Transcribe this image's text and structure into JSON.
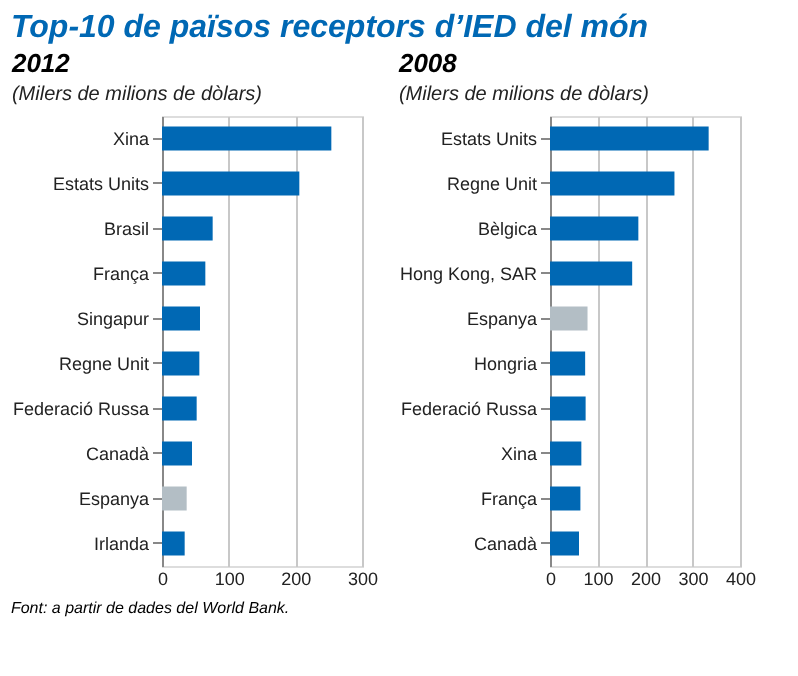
{
  "chart_data": [
    {
      "type": "bar",
      "orientation": "horizontal",
      "title": "2012",
      "subtitle": "(Milers de milions de dòlars)",
      "annotations": [
        "Top-10 de països receptors d’IED del món",
        "Font: a partir de dades del World Bank."
      ],
      "categories": [
        "Xina",
        "Estats Units",
        "Brasil",
        "França",
        "Singapur",
        "Regne Unit",
        "Federació Russa",
        "Canadà",
        "Espanya",
        "Irlanda"
      ],
      "values": [
        254,
        206,
        76,
        65,
        57,
        56,
        52,
        45,
        37,
        34
      ],
      "colors": [
        "#0068b4",
        "#0068b4",
        "#0068b4",
        "#0068b4",
        "#0068b4",
        "#0068b4",
        "#0068b4",
        "#0068b4",
        "#b3bec5",
        "#0068b4"
      ],
      "xlim": [
        0,
        300
      ],
      "xticks": [
        0,
        100,
        200,
        300
      ],
      "grid": "x"
    },
    {
      "type": "bar",
      "orientation": "horizontal",
      "title": "2008",
      "subtitle": "(Milers de milions de dòlars)",
      "categories": [
        "Estats Units",
        "Regne Unit",
        "Bèlgica",
        "Hong Kong, SAR",
        "Espanya",
        "Hongria",
        "Federació Russa",
        "Xina",
        "França",
        "Canadà"
      ],
      "values": [
        334,
        262,
        186,
        173,
        79,
        74,
        75,
        66,
        64,
        61
      ],
      "colors": [
        "#0068b4",
        "#0068b4",
        "#0068b4",
        "#0068b4",
        "#b3bec5",
        "#0068b4",
        "#0068b4",
        "#0068b4",
        "#0068b4",
        "#0068b4"
      ],
      "xlim": [
        0,
        400
      ],
      "xticks": [
        0,
        100,
        200,
        300,
        400
      ],
      "grid": "x"
    }
  ]
}
